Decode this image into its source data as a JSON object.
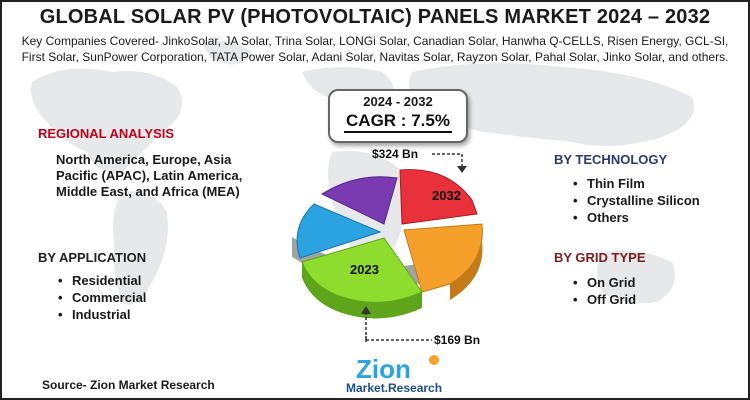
{
  "title": "GLOBAL SOLAR PV (PHOTOVOLTAIC) PANELS MARKET 2024 – 2032",
  "companies": "Key Companies Covered- JinkoSolar, JA Solar, Trina Solar, LONGi Solar, Canadian Solar, Hanwha Q-CELLS, Risen Energy, GCL-SI, First Solar, SunPower Corporation, TATA Power Solar, Adani Solar, Navitas Solar, Rayzon Solar, Pahal Solar, Jinko Solar, and others.",
  "cagr": {
    "years": "2024 - 2032",
    "value": "CAGR : 7.5%"
  },
  "regional": {
    "heading": "REGIONAL ANALYSIS",
    "text": "North America, Europe, Asia Pacific (APAC), Latin America, Middle East, and Africa (MEA)"
  },
  "application": {
    "heading": "BY APPLICATION",
    "items": [
      "Residential",
      "Commercial",
      "Industrial"
    ]
  },
  "technology": {
    "heading": "BY TECHNOLOGY",
    "items": [
      "Thin Film",
      "Crystalline Silicon",
      "Others"
    ]
  },
  "grid": {
    "heading": "BY GRID TYPE",
    "items": [
      "On Grid",
      "Off Grid"
    ]
  },
  "pie": {
    "label_2032": "2032",
    "label_2023": "2023",
    "value_2032": "$324 Bn",
    "value_2023": "$169 Bn",
    "colors": [
      "#e8313a",
      "#f5a02a",
      "#8edc2e",
      "#2aa3e0",
      "#7a3bb0"
    ]
  },
  "logo": {
    "name": "Zion",
    "tagline": "Market.Research"
  },
  "source": "Source- Zion Market Research"
}
